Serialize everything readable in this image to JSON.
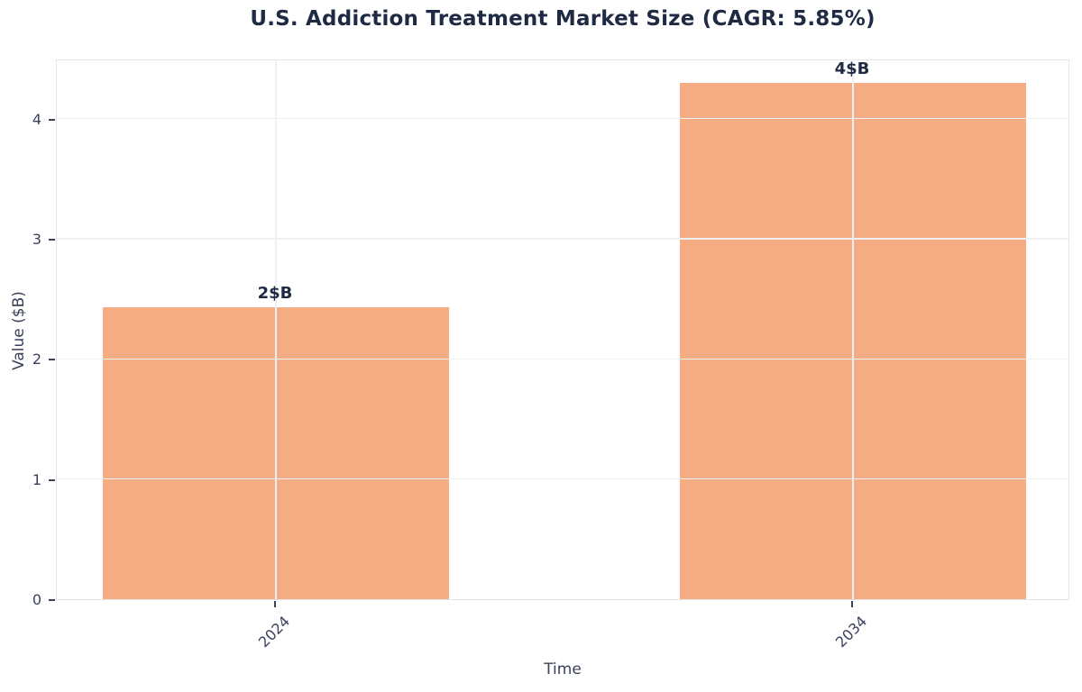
{
  "chart_data": {
    "type": "bar",
    "title": "U.S. Addiction Treatment Market Size (CAGR: 5.85%)",
    "xlabel": "Time",
    "ylabel": "Value ($B)",
    "categories": [
      "2024",
      "2034"
    ],
    "values": [
      2.43,
      4.3
    ],
    "bar_labels": [
      "2$B",
      "4$B"
    ],
    "yticks": [
      0,
      1,
      2,
      3,
      4
    ],
    "ylim": [
      0,
      4.5
    ],
    "grid": true,
    "legend_position": "none",
    "colors": {
      "bar": "#f6ac82",
      "title_text": "#1f2a44",
      "bar_label_text": "#1f2a44",
      "tick_text": "#39415a",
      "axis_label_text": "#39415a",
      "tick_mark": "#3b4357",
      "gridline": "#eef1f4",
      "spine": "#e2e6eb",
      "plot_background": "#ffffff",
      "figure_background": "#ffffff"
    }
  }
}
